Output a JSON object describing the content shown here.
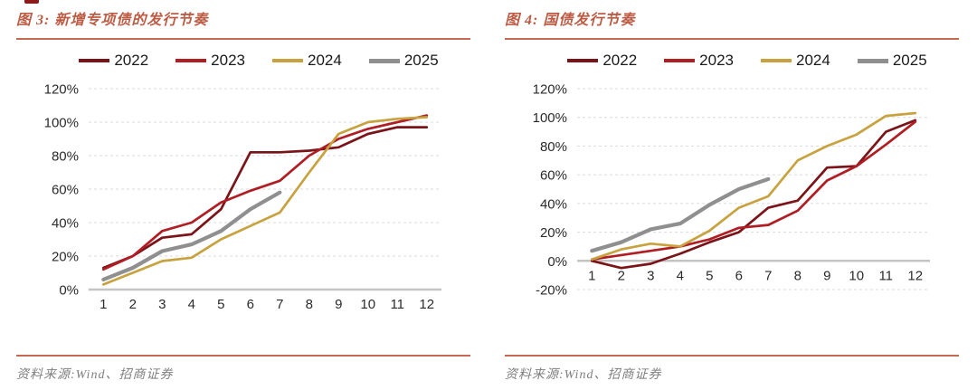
{
  "page": {
    "background": "#ffffff"
  },
  "figures": [
    {
      "title": "图 3: 新增专项债的发行节奏",
      "source": "资料来源:Wind、招商证券",
      "chart_data": {
        "type": "line",
        "categories": [
          "1",
          "2",
          "3",
          "4",
          "5",
          "6",
          "7",
          "8",
          "9",
          "10",
          "11",
          "12"
        ],
        "xlabel": "",
        "ylabel": "",
        "ylim": [
          0,
          120
        ],
        "ytick_step": 20,
        "ytick_suffix": "%",
        "grid": true,
        "legend_position": "top",
        "series": [
          {
            "name": "2022",
            "color": "#7a1418",
            "values": [
              13,
              20,
              31,
              33,
              48,
              82,
              82,
              83,
              85,
              93,
              97,
              97
            ]
          },
          {
            "name": "2023",
            "color": "#b01e24",
            "values": [
              12,
              20,
              35,
              40,
              52,
              59,
              65,
              80,
              90,
              96,
              100,
              104
            ]
          },
          {
            "name": "2024",
            "color": "#c7a23e",
            "values": [
              3,
              10,
              17,
              19,
              30,
              38,
              46,
              70,
              93,
              100,
              102,
              103
            ]
          },
          {
            "name": "2025",
            "color": "#8f8f8f",
            "values": [
              6,
              13,
              23,
              27,
              35,
              48,
              58
            ]
          }
        ]
      }
    },
    {
      "title": "图 4: 国债发行节奏",
      "source": "资料来源:Wind、招商证券",
      "chart_data": {
        "type": "line",
        "categories": [
          "1",
          "2",
          "3",
          "4",
          "5",
          "6",
          "7",
          "8",
          "9",
          "10",
          "11",
          "12"
        ],
        "xlabel": "",
        "ylabel": "",
        "ylim": [
          -20,
          120
        ],
        "ytick_step": 20,
        "ytick_suffix": "%",
        "grid": true,
        "legend_position": "top",
        "series": [
          {
            "name": "2022",
            "color": "#7a1418",
            "values": [
              0,
              -5,
              -2,
              5,
              13,
              20,
              37,
              42,
              65,
              66,
              90,
              98
            ]
          },
          {
            "name": "2023",
            "color": "#b01e24",
            "values": [
              1,
              4,
              7,
              10,
              15,
              23,
              25,
              35,
              56,
              66,
              81,
              97
            ]
          },
          {
            "name": "2024",
            "color": "#c7a23e",
            "values": [
              1,
              8,
              12,
              10,
              21,
              37,
              45,
              70,
              80,
              88,
              101,
              103
            ]
          },
          {
            "name": "2025",
            "color": "#8f8f8f",
            "values": [
              7,
              13,
              22,
              26,
              39,
              50,
              57
            ]
          }
        ]
      }
    }
  ],
  "style": {
    "title_color": "#bd5c45",
    "divider_color": "#c36a51",
    "source_color": "#7f7f7f",
    "gridline_color": "#dbdbdb",
    "zero_axis_color": "#c4c4c4",
    "tick_label_color": "#2b2b2b"
  }
}
